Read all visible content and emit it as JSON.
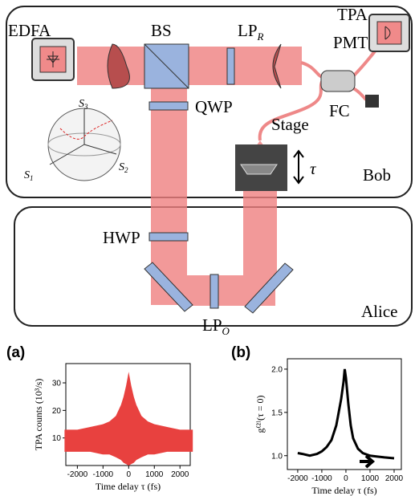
{
  "diagram": {
    "labels": {
      "edfa": "EDFA",
      "bs": "BS",
      "lp_r": {
        "text": "LP",
        "sub": "R"
      },
      "tpa": "TPA",
      "pmt": "PMT",
      "qwp": "QWP",
      "fc": "FC",
      "stage": "Stage",
      "tau": "τ",
      "bob": "Bob",
      "hwp": "HWP",
      "alice": "Alice",
      "lp_o": {
        "text": "LP",
        "sub": "O"
      },
      "s3": {
        "text": "S",
        "sub": "3"
      },
      "s1": {
        "text": "S",
        "sub": "1"
      },
      "s2": {
        "text": "S",
        "sub": "2"
      }
    }
  },
  "chart_data": [
    {
      "type": "band",
      "panel": "(a)",
      "ylabel": "TPA counts (10³/s)",
      "xlabel": "Time delay τ (fs)",
      "color": "#e8413f",
      "x": [
        -2500,
        -2000,
        -1500,
        -1000,
        -750,
        -500,
        -300,
        -200,
        -100,
        0,
        100,
        200,
        300,
        500,
        750,
        1000,
        1500,
        2000,
        2500
      ],
      "upper": [
        13,
        13,
        14,
        15,
        16,
        18,
        22,
        25,
        29,
        34,
        29,
        25,
        22,
        18,
        16,
        15,
        14,
        13,
        13
      ],
      "lower": [
        5,
        5,
        5,
        4,
        4,
        3,
        2,
        1,
        0.5,
        0,
        0.5,
        1,
        2,
        3,
        4,
        4,
        5,
        5,
        5
      ],
      "xlim": [
        -2450,
        2400
      ],
      "ylim": [
        0,
        37
      ],
      "xticks": [
        -2000,
        -1000,
        0,
        1000,
        2000
      ],
      "yticks": [
        10,
        20,
        30
      ]
    },
    {
      "type": "line",
      "panel": "(b)",
      "ylabel": "g⁽²⁾(τ = 0)",
      "xlabel": "Time delay τ (fs)",
      "color": "#000000",
      "x": [
        -2000,
        -1800,
        -1500,
        -1200,
        -1000,
        -800,
        -600,
        -400,
        -300,
        -200,
        -100,
        -50,
        0,
        100,
        200,
        300,
        500,
        700,
        1000,
        1300,
        1600,
        2000
      ],
      "values": [
        1.03,
        1.02,
        1.0,
        1.02,
        1.05,
        1.1,
        1.18,
        1.35,
        1.5,
        1.65,
        1.85,
        2.0,
        1.9,
        1.6,
        1.35,
        1.2,
        1.08,
        1.03,
        1.0,
        0.99,
        0.98,
        0.97
      ],
      "xlim": [
        -2430,
        2300
      ],
      "ylim": [
        0.84,
        2.12
      ],
      "xticks": [
        -2000,
        -1000,
        0,
        1000,
        2000
      ],
      "yticks": [
        {
          "value": 1.0,
          "label": "1.0"
        },
        {
          "value": 1.5,
          "label": "1.5"
        },
        {
          "value": 2.0,
          "label": "2.0"
        }
      ]
    }
  ]
}
